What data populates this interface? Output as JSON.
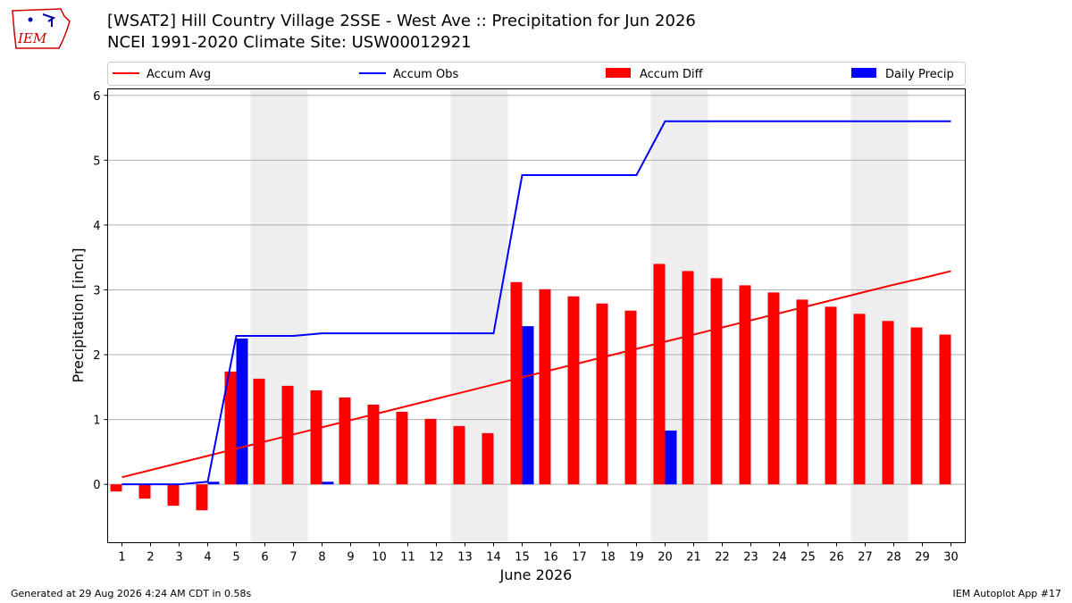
{
  "header": {
    "title_line1": "[WSAT2] Hill Country Village 2SSE - West Ave :: Precipitation for Jun 2026",
    "title_line2": "NCEI 1991-2020 Climate Site: USW00012921"
  },
  "logo": {
    "text": "IEM",
    "color": "#cc0000"
  },
  "footer": {
    "generated": "Generated at 29 Aug 2026 4:24 AM CDT in 0.58s",
    "app": "IEM Autoplot App #17"
  },
  "chart_data": {
    "type": "bar",
    "xlabel": "June 2026",
    "ylabel": "Precipitation [inch]",
    "ylim": [
      -0.9,
      6.1
    ],
    "yticks": [
      0,
      1,
      2,
      3,
      4,
      5,
      6
    ],
    "days": [
      1,
      2,
      3,
      4,
      5,
      6,
      7,
      8,
      9,
      10,
      11,
      12,
      13,
      14,
      15,
      16,
      17,
      18,
      19,
      20,
      21,
      22,
      23,
      24,
      25,
      26,
      27,
      28,
      29,
      30
    ],
    "weekend_days": [
      6,
      7,
      13,
      14,
      20,
      21,
      27,
      28
    ],
    "grid": true,
    "legend_position": "top",
    "series": [
      {
        "name": "Accum Avg",
        "kind": "line",
        "color": "#ff0000",
        "values": [
          0.11,
          0.22,
          0.33,
          0.44,
          0.55,
          0.66,
          0.77,
          0.88,
          0.99,
          1.1,
          1.21,
          1.32,
          1.43,
          1.54,
          1.65,
          1.76,
          1.87,
          1.98,
          2.09,
          2.2,
          2.31,
          2.42,
          2.53,
          2.64,
          2.75,
          2.86,
          2.97,
          3.08,
          3.18,
          3.29
        ]
      },
      {
        "name": "Accum Obs",
        "kind": "line",
        "color": "#0000ff",
        "values": [
          0.0,
          0.0,
          0.0,
          0.04,
          2.29,
          2.29,
          2.29,
          2.33,
          2.33,
          2.33,
          2.33,
          2.33,
          2.33,
          2.33,
          4.77,
          4.77,
          4.77,
          4.77,
          4.77,
          5.6,
          5.6,
          5.6,
          5.6,
          5.6,
          5.6,
          5.6,
          5.6,
          5.6,
          5.6,
          5.6
        ]
      },
      {
        "name": "Accum Diff",
        "kind": "bar",
        "color": "#ff0000",
        "values": [
          -0.11,
          -0.22,
          -0.33,
          -0.4,
          1.74,
          1.63,
          1.52,
          1.45,
          1.34,
          1.23,
          1.12,
          1.01,
          0.9,
          0.79,
          3.12,
          3.01,
          2.9,
          2.79,
          2.68,
          3.4,
          3.29,
          3.18,
          3.07,
          2.96,
          2.85,
          2.74,
          2.63,
          2.52,
          2.42,
          2.31
        ]
      },
      {
        "name": "Daily Precip",
        "kind": "bar",
        "color": "#0000ff",
        "values": [
          0,
          0,
          0,
          0.04,
          2.25,
          0,
          0,
          0.04,
          0,
          0,
          0,
          0,
          0,
          0,
          2.44,
          0,
          0,
          0,
          0,
          0.83,
          0,
          0,
          0,
          0,
          0,
          0,
          0,
          0,
          0,
          0
        ]
      }
    ]
  }
}
